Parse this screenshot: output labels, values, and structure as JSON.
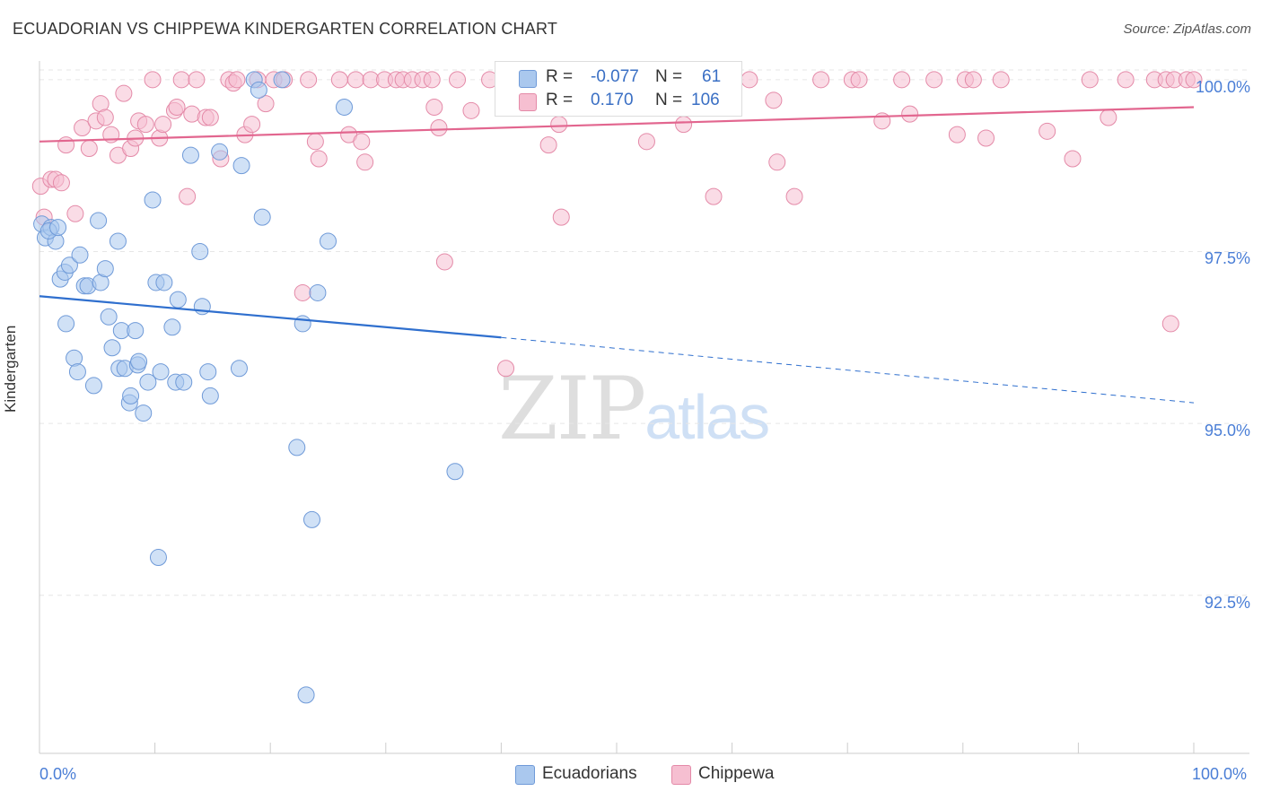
{
  "header": {
    "title": "ECUADORIAN VS CHIPPEWA KINDERGARTEN CORRELATION CHART",
    "source": "Source: ZipAtlas.com"
  },
  "legend": {
    "r_label": "R =",
    "n_label": "N =",
    "ecuadorians": {
      "r": "-0.077",
      "n": "61"
    },
    "chippewa": {
      "r": "0.170",
      "n": "106"
    }
  },
  "bottom_legend": {
    "ecuadorians": "Ecuadorians",
    "chippewa": "Chippewa"
  },
  "watermark": {
    "zip": "ZIP",
    "atlas": "atlas"
  },
  "chart_data": {
    "type": "scatter",
    "title": "ECUADORIAN VS CHIPPEWA KINDERGARTEN CORRELATION CHART",
    "ylabel": "Kindergarten",
    "xlabel": "",
    "xlim": [
      0,
      100
    ],
    "ylim": [
      90.2,
      100.35
    ],
    "x_tick_labels": [
      "0.0%",
      "100.0%"
    ],
    "y_ticks": [
      92.5,
      95.0,
      97.5,
      100.0
    ],
    "y_tick_labels": [
      "92.5%",
      "95.0%",
      "97.5%",
      "100.0%"
    ],
    "grid": true,
    "colors": {
      "ecuadorians_fill": "#aac8ee",
      "ecuadorians_stroke": "#6f9ad8",
      "ecuadorians_line": "#2f6fce",
      "chippewa_fill": "#f6bfd1",
      "chippewa_stroke": "#e48aa8",
      "chippewa_line": "#e2668f",
      "axis_text": "#4a7ed6"
    },
    "series": [
      {
        "name": "Ecuadorians",
        "trend": {
          "x": [
            0,
            40,
            100
          ],
          "y": [
            96.85,
            96.25,
            95.3
          ],
          "solid_until": 40
        },
        "points": [
          [
            0.2,
            97.9
          ],
          [
            0.5,
            97.7
          ],
          [
            1.0,
            97.85
          ],
          [
            1.4,
            97.65
          ],
          [
            1.8,
            97.1
          ],
          [
            2.2,
            97.2
          ],
          [
            2.6,
            97.3
          ],
          [
            2.3,
            96.45
          ],
          [
            3.0,
            95.95
          ],
          [
            3.3,
            95.75
          ],
          [
            3.5,
            97.45
          ],
          [
            3.9,
            97.0
          ],
          [
            4.2,
            97.0
          ],
          [
            4.7,
            95.55
          ],
          [
            5.1,
            97.95
          ],
          [
            5.3,
            97.05
          ],
          [
            5.7,
            97.25
          ],
          [
            6.0,
            96.55
          ],
          [
            6.3,
            96.1
          ],
          [
            6.8,
            97.65
          ],
          [
            6.9,
            95.8
          ],
          [
            7.1,
            96.35
          ],
          [
            7.4,
            95.8
          ],
          [
            7.8,
            95.3
          ],
          [
            7.9,
            95.4
          ],
          [
            8.3,
            96.35
          ],
          [
            8.5,
            95.85
          ],
          [
            8.6,
            95.9
          ],
          [
            9.0,
            95.15
          ],
          [
            9.4,
            95.6
          ],
          [
            9.8,
            98.25
          ],
          [
            10.1,
            97.05
          ],
          [
            10.3,
            93.05
          ],
          [
            10.5,
            95.75
          ],
          [
            10.8,
            97.05
          ],
          [
            11.5,
            96.4
          ],
          [
            11.8,
            95.6
          ],
          [
            12.0,
            96.8
          ],
          [
            12.5,
            95.6
          ],
          [
            13.1,
            98.9
          ],
          [
            13.9,
            97.5
          ],
          [
            14.1,
            96.7
          ],
          [
            14.6,
            95.75
          ],
          [
            14.8,
            95.4
          ],
          [
            15.6,
            98.95
          ],
          [
            17.3,
            95.8
          ],
          [
            17.5,
            98.75
          ],
          [
            18.6,
            100.0
          ],
          [
            19.0,
            99.85
          ],
          [
            19.3,
            98.0
          ],
          [
            21.0,
            100.0
          ],
          [
            22.3,
            94.65
          ],
          [
            22.8,
            96.45
          ],
          [
            23.1,
            91.05
          ],
          [
            23.6,
            93.6
          ],
          [
            24.1,
            96.9
          ],
          [
            25.0,
            97.65
          ],
          [
            26.4,
            99.6
          ],
          [
            36.0,
            94.3
          ],
          [
            0.8,
            97.8
          ],
          [
            1.6,
            97.85
          ]
        ]
      },
      {
        "name": "Chippewa",
        "trend": {
          "x": [
            0,
            100
          ],
          "y": [
            99.1,
            99.6
          ],
          "solid_until": 100
        },
        "points": [
          [
            0.1,
            98.45
          ],
          [
            0.4,
            98.0
          ],
          [
            1.0,
            98.55
          ],
          [
            1.4,
            98.55
          ],
          [
            1.9,
            98.5
          ],
          [
            2.3,
            99.05
          ],
          [
            3.1,
            98.05
          ],
          [
            3.7,
            99.3
          ],
          [
            4.3,
            99.0
          ],
          [
            4.9,
            99.4
          ],
          [
            5.3,
            99.65
          ],
          [
            5.7,
            99.45
          ],
          [
            6.2,
            99.2
          ],
          [
            6.8,
            98.9
          ],
          [
            7.3,
            99.8
          ],
          [
            7.9,
            99.0
          ],
          [
            8.3,
            99.15
          ],
          [
            8.6,
            99.4
          ],
          [
            9.2,
            99.35
          ],
          [
            9.8,
            100.0
          ],
          [
            10.4,
            99.15
          ],
          [
            10.7,
            99.35
          ],
          [
            11.7,
            99.55
          ],
          [
            11.9,
            99.6
          ],
          [
            12.3,
            100.0
          ],
          [
            12.8,
            98.3
          ],
          [
            13.2,
            99.5
          ],
          [
            13.6,
            100.0
          ],
          [
            14.4,
            99.45
          ],
          [
            14.8,
            99.45
          ],
          [
            15.7,
            98.85
          ],
          [
            16.4,
            100.0
          ],
          [
            16.8,
            99.95
          ],
          [
            17.1,
            100.0
          ],
          [
            17.8,
            99.2
          ],
          [
            18.4,
            99.35
          ],
          [
            18.9,
            100.0
          ],
          [
            19.6,
            99.65
          ],
          [
            20.3,
            100.0
          ],
          [
            21.2,
            100.0
          ],
          [
            22.8,
            96.9
          ],
          [
            23.3,
            100.0
          ],
          [
            23.9,
            99.1
          ],
          [
            24.2,
            98.85
          ],
          [
            26.0,
            100.0
          ],
          [
            26.8,
            99.2
          ],
          [
            27.4,
            100.0
          ],
          [
            27.9,
            99.1
          ],
          [
            28.2,
            98.8
          ],
          [
            28.7,
            100.0
          ],
          [
            29.9,
            100.0
          ],
          [
            30.9,
            100.0
          ],
          [
            31.5,
            100.0
          ],
          [
            32.3,
            100.0
          ],
          [
            33.2,
            100.0
          ],
          [
            34.0,
            100.0
          ],
          [
            34.6,
            99.3
          ],
          [
            34.2,
            99.6
          ],
          [
            35.1,
            97.35
          ],
          [
            36.2,
            100.0
          ],
          [
            37.4,
            99.55
          ],
          [
            39.0,
            100.0
          ],
          [
            40.4,
            95.8
          ],
          [
            42.2,
            100.0
          ],
          [
            44.1,
            99.05
          ],
          [
            45.0,
            99.35
          ],
          [
            45.6,
            100.0
          ],
          [
            46.4,
            100.0
          ],
          [
            47.0,
            100.0
          ],
          [
            49.4,
            100.0
          ],
          [
            49.8,
            100.0
          ],
          [
            52.6,
            99.1
          ],
          [
            53.1,
            100.0
          ],
          [
            54.8,
            100.0
          ],
          [
            55.8,
            99.35
          ],
          [
            56.5,
            100.0
          ],
          [
            58.4,
            98.3
          ],
          [
            59.8,
            100.0
          ],
          [
            61.5,
            100.0
          ],
          [
            63.6,
            99.7
          ],
          [
            63.9,
            98.8
          ],
          [
            65.4,
            98.3
          ],
          [
            67.7,
            100.0
          ],
          [
            70.4,
            100.0
          ],
          [
            71.0,
            100.0
          ],
          [
            73.0,
            99.4
          ],
          [
            74.7,
            100.0
          ],
          [
            75.4,
            99.5
          ],
          [
            77.5,
            100.0
          ],
          [
            79.5,
            99.2
          ],
          [
            80.2,
            100.0
          ],
          [
            80.9,
            100.0
          ],
          [
            82.0,
            99.15
          ],
          [
            83.3,
            100.0
          ],
          [
            87.3,
            99.25
          ],
          [
            89.5,
            98.85
          ],
          [
            91.0,
            100.0
          ],
          [
            92.6,
            99.45
          ],
          [
            94.1,
            100.0
          ],
          [
            96.6,
            100.0
          ],
          [
            97.6,
            100.0
          ],
          [
            98.3,
            100.0
          ],
          [
            99.4,
            100.0
          ],
          [
            100.0,
            100.0
          ],
          [
            98.0,
            96.45
          ],
          [
            45.2,
            98.0
          ]
        ]
      }
    ]
  }
}
